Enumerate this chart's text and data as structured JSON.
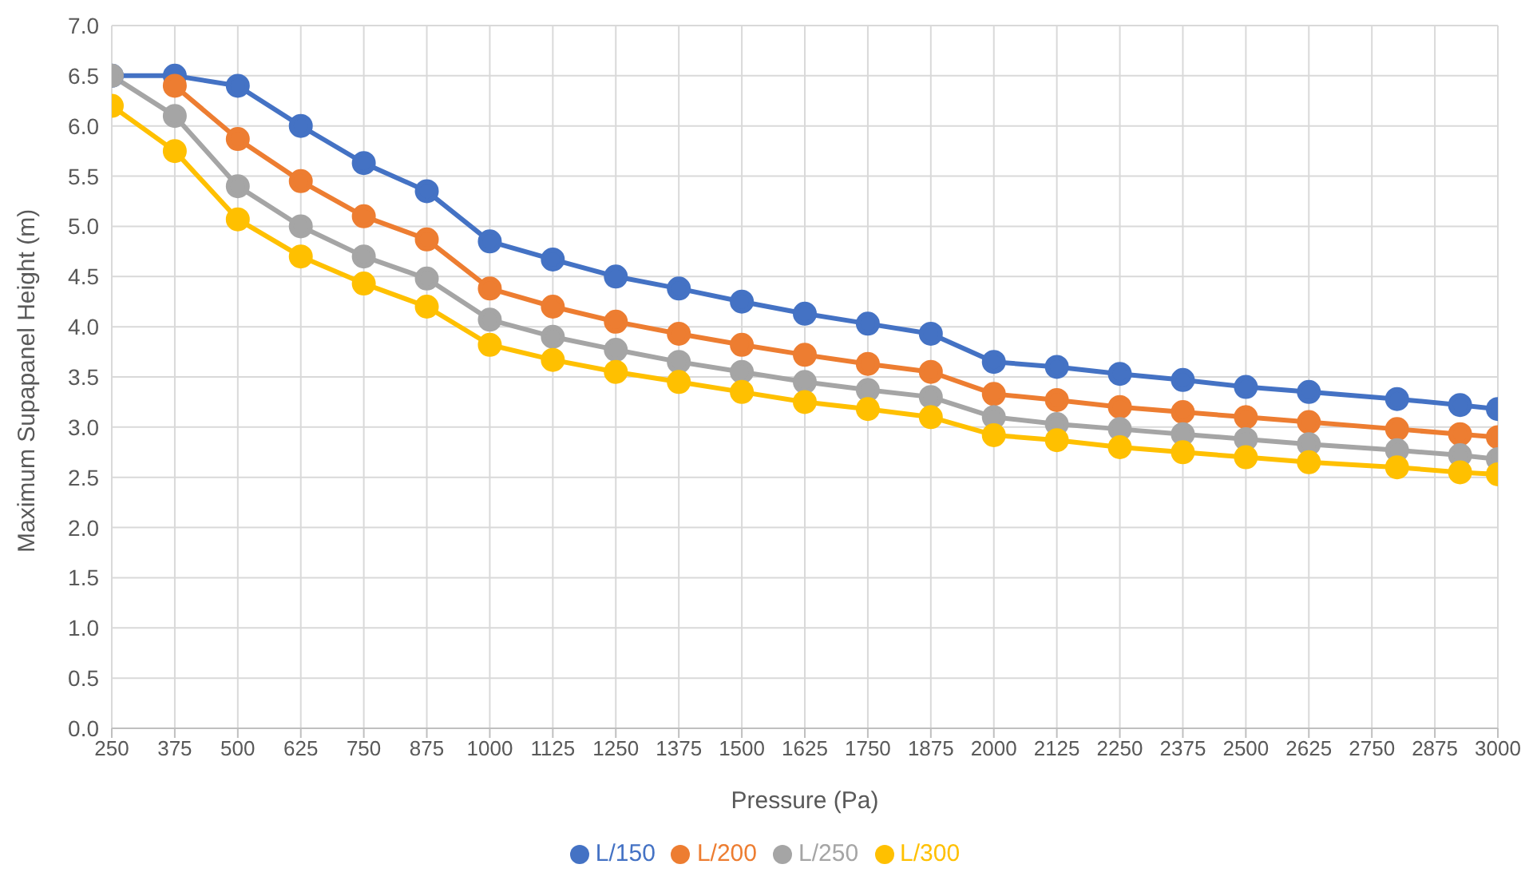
{
  "chart_data": {
    "type": "line",
    "xlabel": "Pressure (Pa)",
    "ylabel": "Maximum Supapanel Height (m)",
    "x": [
      250,
      375,
      500,
      625,
      750,
      875,
      1000,
      1125,
      1250,
      1375,
      1500,
      1625,
      1750,
      1875,
      2000,
      2125,
      2250,
      2375,
      2500,
      2625,
      2800,
      2925,
      3000
    ],
    "xlim": [
      250,
      3000
    ],
    "xticks": [
      250,
      375,
      500,
      625,
      750,
      875,
      1000,
      1125,
      1250,
      1375,
      1500,
      1625,
      1750,
      1875,
      2000,
      2125,
      2250,
      2375,
      2500,
      2625,
      2750,
      2875,
      3000
    ],
    "ylim": [
      0,
      7
    ],
    "yticks": [
      {
        "value": 0,
        "label": "0.0"
      },
      {
        "value": 0.5,
        "label": "0.5"
      },
      {
        "value": 1,
        "label": "1.0"
      },
      {
        "value": 1.5,
        "label": "1.5"
      },
      {
        "value": 2,
        "label": "2.0"
      },
      {
        "value": 2.5,
        "label": "2.5"
      },
      {
        "value": 3,
        "label": "3.0"
      },
      {
        "value": 3.5,
        "label": "3.5"
      },
      {
        "value": 4,
        "label": "4.0"
      },
      {
        "value": 4.5,
        "label": "4.5"
      },
      {
        "value": 5,
        "label": "5.0"
      },
      {
        "value": 5.5,
        "label": "5.5"
      },
      {
        "value": 6,
        "label": "6.0"
      },
      {
        "value": 6.5,
        "label": "6.5"
      },
      {
        "value": 7,
        "label": "7.0"
      }
    ],
    "grid": true,
    "legend": "bottom",
    "marker": "circle",
    "line_style": "solid",
    "series": [
      {
        "name": "L/150",
        "color": "#4472c4",
        "values": [
          6.5,
          6.5,
          6.4,
          6.0,
          5.63,
          5.35,
          4.85,
          4.67,
          4.5,
          4.38,
          4.25,
          4.13,
          4.03,
          3.93,
          3.65,
          3.6,
          3.53,
          3.47,
          3.4,
          3.35,
          3.28,
          3.22,
          3.18
        ]
      },
      {
        "name": "L/200",
        "color": "#ed7d31",
        "values": [
          null,
          6.4,
          5.87,
          5.45,
          5.1,
          4.87,
          4.38,
          4.2,
          4.05,
          3.93,
          3.82,
          3.72,
          3.63,
          3.55,
          3.33,
          3.27,
          3.2,
          3.15,
          3.1,
          3.05,
          2.98,
          2.93,
          2.9
        ]
      },
      {
        "name": "L/250",
        "color": "#a5a5a5",
        "values": [
          6.5,
          6.1,
          5.4,
          5.0,
          4.7,
          4.48,
          4.07,
          3.9,
          3.77,
          3.65,
          3.55,
          3.45,
          3.37,
          3.3,
          3.1,
          3.03,
          2.98,
          2.93,
          2.88,
          2.83,
          2.77,
          2.72,
          2.68
        ]
      },
      {
        "name": "L/300",
        "color": "#ffc000",
        "values": [
          6.2,
          5.75,
          5.07,
          4.7,
          4.43,
          4.2,
          3.82,
          3.67,
          3.55,
          3.45,
          3.35,
          3.25,
          3.18,
          3.1,
          2.92,
          2.87,
          2.8,
          2.75,
          2.7,
          2.65,
          2.6,
          2.55,
          2.53
        ]
      }
    ]
  }
}
